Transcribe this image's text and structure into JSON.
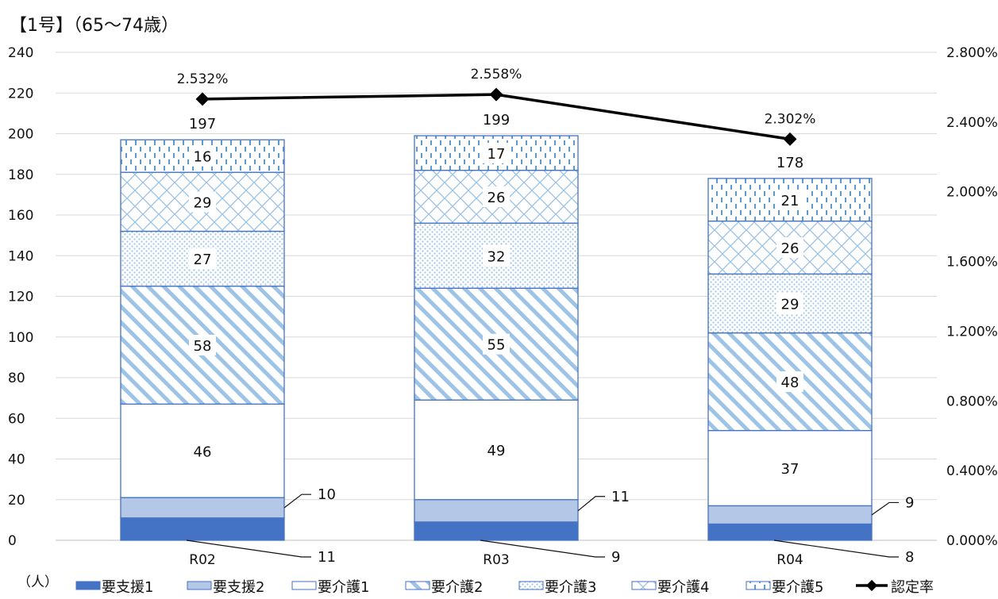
{
  "chart_data": {
    "type": "bar",
    "stacked": true,
    "title": "【1号】（65〜74歳）",
    "y_unit_label": "（人）",
    "categories": [
      "R02",
      "R03",
      "R04"
    ],
    "ylim": [
      0,
      240
    ],
    "yticks": [
      "0",
      "20",
      "40",
      "60",
      "80",
      "100",
      "120",
      "140",
      "160",
      "180",
      "200",
      "220",
      "240"
    ],
    "y2lim": [
      0,
      2.8
    ],
    "y2ticks": [
      "0.000%",
      "0.400%",
      "0.800%",
      "1.200%",
      "1.600%",
      "2.000%",
      "2.400%",
      "2.800%"
    ],
    "grid": true,
    "legend_position": "bottom",
    "series": [
      {
        "name": "要支援1",
        "values": [
          11,
          9,
          8
        ],
        "color": "#4472c4",
        "pattern": "solid"
      },
      {
        "name": "要支援2",
        "values": [
          10,
          11,
          9
        ],
        "color": "#b4c7e7",
        "pattern": "solid"
      },
      {
        "name": "要介護1",
        "values": [
          46,
          49,
          37
        ],
        "color": "#ffffff",
        "pattern": "solid"
      },
      {
        "name": "要介護2",
        "values": [
          58,
          55,
          48
        ],
        "color": "#9dc3e6",
        "pattern": "wide-diagonal"
      },
      {
        "name": "要介護3",
        "values": [
          27,
          32,
          29
        ],
        "color": "#9dc3e6",
        "pattern": "dots"
      },
      {
        "name": "要介護4",
        "values": [
          29,
          26,
          26
        ],
        "color": "#9dc3e6",
        "pattern": "weave"
      },
      {
        "name": "要介護5",
        "values": [
          16,
          17,
          21
        ],
        "color": "#5b9bd5",
        "pattern": "dashes"
      }
    ],
    "totals": [
      "197",
      "199",
      "178"
    ],
    "line_series": {
      "name": "認定率",
      "values": [
        2.532,
        2.558,
        2.302
      ],
      "labels": [
        "2.532%",
        "2.558%",
        "2.302%"
      ],
      "color": "#000000"
    }
  }
}
